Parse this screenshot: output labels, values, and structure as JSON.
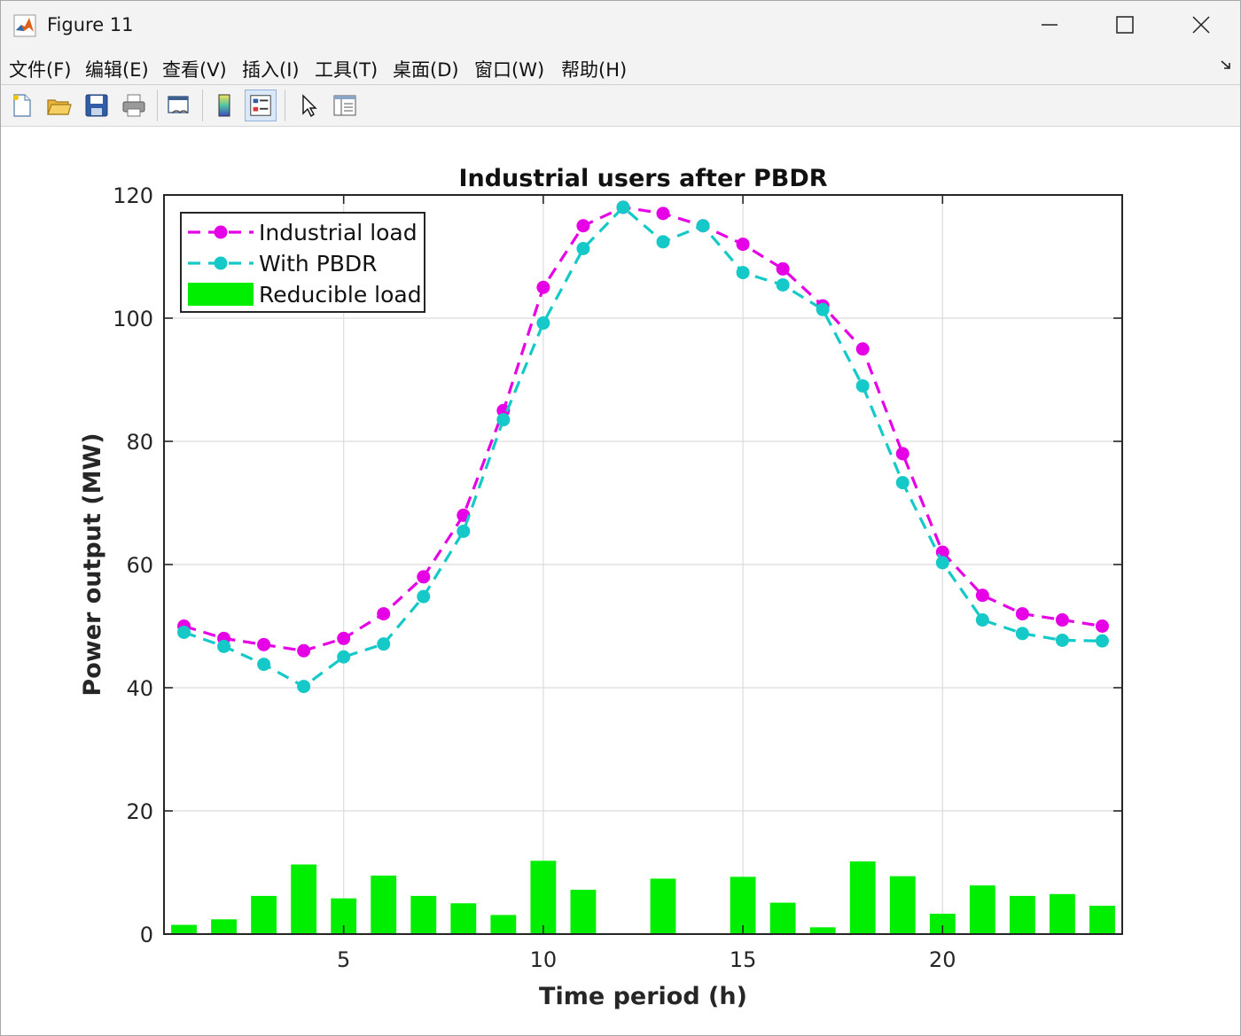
{
  "window": {
    "title": "Figure 11"
  },
  "menu": [
    {
      "label": "文件(F)"
    },
    {
      "label": "编辑(E)"
    },
    {
      "label": "查看(V)"
    },
    {
      "label": "插入(I)"
    },
    {
      "label": "工具(T)"
    },
    {
      "label": "桌面(D)"
    },
    {
      "label": "窗口(W)"
    },
    {
      "label": "帮助(H)"
    }
  ],
  "toolbar": {
    "buttons": [
      {
        "icon": "new-figure-icon"
      },
      {
        "icon": "open-file-icon"
      },
      {
        "icon": "save-icon"
      },
      {
        "icon": "print-icon"
      },
      {
        "icon": "link-plot-icon"
      },
      {
        "icon": "colorbar-icon"
      },
      {
        "icon": "legend-icon"
      },
      {
        "icon": "pointer-icon"
      },
      {
        "icon": "property-inspector-icon"
      }
    ]
  },
  "colors": {
    "industrial_load": "#e600e6",
    "with_pbdr": "#16c9c9",
    "reducible_load": "#00ee00"
  },
  "chart_data": {
    "type": "line",
    "title": "Industrial users after PBDR",
    "xlabel": "Time period (h)",
    "ylabel": "Power output (MW)",
    "xlim": [
      0.5,
      24.5
    ],
    "ylim": [
      0,
      120
    ],
    "xticks": [
      5,
      10,
      15,
      20
    ],
    "yticks": [
      0,
      20,
      40,
      60,
      80,
      100,
      120
    ],
    "grid": true,
    "legend_position": "top-left",
    "x": [
      1,
      2,
      3,
      4,
      5,
      6,
      7,
      8,
      9,
      10,
      11,
      12,
      13,
      14,
      15,
      16,
      17,
      18,
      19,
      20,
      21,
      22,
      23,
      24
    ],
    "series": [
      {
        "name": "Industrial load",
        "kind": "line-dashed-marker",
        "values": [
          50,
          48,
          47,
          46,
          48,
          52,
          58,
          68,
          85,
          105,
          115,
          118,
          117,
          115,
          112,
          108,
          102,
          95,
          78,
          62,
          55,
          52,
          51,
          50
        ]
      },
      {
        "name": "With PBDR",
        "kind": "line-dashed-marker",
        "values": [
          49,
          46.7,
          43.8,
          40.2,
          45,
          47.1,
          54.8,
          65.4,
          83.5,
          99.2,
          111.3,
          118,
          112.4,
          115,
          107.4,
          105.4,
          101.4,
          89,
          73.3,
          60.3,
          51,
          48.8,
          47.7,
          47.6
        ]
      },
      {
        "name": "Reducible load",
        "kind": "bar",
        "values": [
          1.5,
          2.4,
          6.2,
          11.3,
          5.8,
          9.5,
          6.2,
          5,
          3.1,
          11.9,
          7.2,
          0,
          9,
          0,
          9.3,
          5.1,
          1.1,
          11.8,
          9.4,
          3.3,
          7.9,
          6.2,
          6.5,
          4.6
        ]
      }
    ]
  }
}
